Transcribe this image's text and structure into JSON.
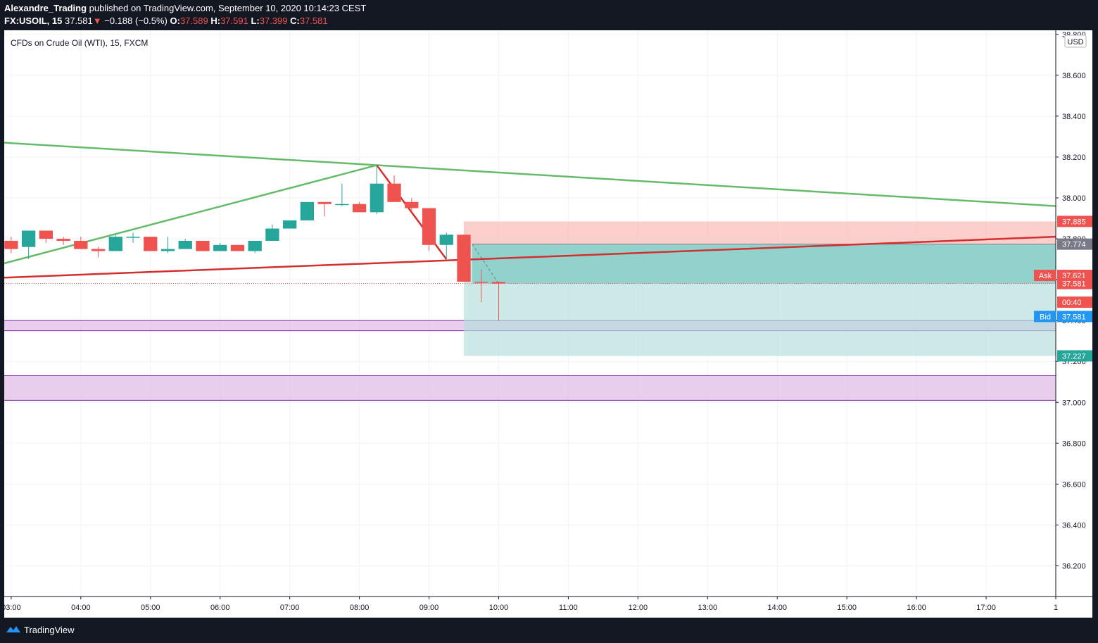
{
  "header": {
    "author": "Alexandre_Trading",
    "published_text": "published on TradingView.com, September 10, 2020 10:14:23 CEST",
    "symbol": "FX:USOIL, 15",
    "last": "37.581",
    "change": "−0.188 (−0.5%)",
    "o_label": "O:",
    "o_value": "37.589",
    "h_label": "H:",
    "h_value": "37.591",
    "l_label": "L:",
    "l_value": "37.399",
    "c_label": "C:",
    "c_value": "37.581"
  },
  "footer": {
    "brand": "TradingView",
    "logo_icon": "tradingview-logo-icon"
  },
  "colors": {
    "up": "#26a69a",
    "down": "#ef5350",
    "green_line": "#66bb6a",
    "red_line": "#d32f2f",
    "target_zone": "#b2dfdb",
    "stop_zone": "#f8bbb6",
    "purple_zone": "#e1bee7",
    "purple_edge": "#7b1fa2"
  },
  "chart_data": {
    "type": "candlestick",
    "title": "CFDs on Crude Oil (WTI), 15, FXCM",
    "currency": "USD",
    "y_ticks": [
      38.8,
      38.6,
      38.4,
      38.2,
      38.0,
      37.8,
      37.6,
      37.4,
      37.2,
      37.0,
      36.8,
      36.6,
      36.4,
      36.2
    ],
    "y_tick_labels": [
      "38.800",
      "38.600",
      "38.400",
      "38.200",
      "38.000",
      "37.800",
      "37.600",
      "37.400",
      "37.200",
      "37.000",
      "36.800",
      "36.600",
      "36.400",
      "36.200"
    ],
    "ylim": [
      36.05,
      38.82
    ],
    "x_tick_labels": [
      "03:00",
      "04:00",
      "05:00",
      "06:00",
      "07:00",
      "08:00",
      "09:00",
      "10:00",
      "11:00",
      "12:00",
      "13:00",
      "14:00",
      "15:00",
      "16:00",
      "17:00",
      "1"
    ],
    "x_tick_hours": [
      3,
      4,
      5,
      6,
      7,
      8,
      9,
      10,
      11,
      12,
      13,
      14,
      15,
      16,
      17,
      18
    ],
    "xlim": [
      2.9,
      18.0
    ],
    "candles": [
      {
        "t": 2.75,
        "o": 37.76,
        "h": 37.8,
        "l": 37.72,
        "c": 37.79
      },
      {
        "t": 3.0,
        "o": 37.79,
        "h": 37.81,
        "l": 37.73,
        "c": 37.75
      },
      {
        "t": 3.25,
        "o": 37.76,
        "h": 37.84,
        "l": 37.7,
        "c": 37.84
      },
      {
        "t": 3.5,
        "o": 37.84,
        "h": 37.84,
        "l": 37.78,
        "c": 37.8
      },
      {
        "t": 3.75,
        "o": 37.8,
        "h": 37.81,
        "l": 37.77,
        "c": 37.79
      },
      {
        "t": 4.0,
        "o": 37.79,
        "h": 37.81,
        "l": 37.75,
        "c": 37.75
      },
      {
        "t": 4.25,
        "o": 37.75,
        "h": 37.76,
        "l": 37.71,
        "c": 37.74
      },
      {
        "t": 4.5,
        "o": 37.74,
        "h": 37.82,
        "l": 37.74,
        "c": 37.81
      },
      {
        "t": 4.75,
        "o": 37.81,
        "h": 37.83,
        "l": 37.78,
        "c": 37.81
      },
      {
        "t": 5.0,
        "o": 37.81,
        "h": 37.81,
        "l": 37.74,
        "c": 37.74
      },
      {
        "t": 5.25,
        "o": 37.74,
        "h": 37.81,
        "l": 37.73,
        "c": 37.75
      },
      {
        "t": 5.5,
        "o": 37.75,
        "h": 37.8,
        "l": 37.75,
        "c": 37.79
      },
      {
        "t": 5.75,
        "o": 37.79,
        "h": 37.79,
        "l": 37.74,
        "c": 37.74
      },
      {
        "t": 6.0,
        "o": 37.74,
        "h": 37.78,
        "l": 37.74,
        "c": 37.77
      },
      {
        "t": 6.25,
        "o": 37.77,
        "h": 37.77,
        "l": 37.74,
        "c": 37.74
      },
      {
        "t": 6.5,
        "o": 37.74,
        "h": 37.79,
        "l": 37.73,
        "c": 37.79
      },
      {
        "t": 6.75,
        "o": 37.79,
        "h": 37.87,
        "l": 37.79,
        "c": 37.85
      },
      {
        "t": 7.0,
        "o": 37.85,
        "h": 37.89,
        "l": 37.85,
        "c": 37.89
      },
      {
        "t": 7.25,
        "o": 37.89,
        "h": 37.98,
        "l": 37.89,
        "c": 37.98
      },
      {
        "t": 7.5,
        "o": 37.98,
        "h": 37.98,
        "l": 37.91,
        "c": 37.97
      },
      {
        "t": 7.75,
        "o": 37.97,
        "h": 38.07,
        "l": 37.96,
        "c": 37.97
      },
      {
        "t": 8.0,
        "o": 37.97,
        "h": 37.98,
        "l": 37.93,
        "c": 37.93
      },
      {
        "t": 8.25,
        "o": 37.93,
        "h": 38.16,
        "l": 37.92,
        "c": 38.07
      },
      {
        "t": 8.5,
        "o": 38.07,
        "h": 38.11,
        "l": 37.98,
        "c": 37.98
      },
      {
        "t": 8.75,
        "o": 37.98,
        "h": 38.0,
        "l": 37.93,
        "c": 37.95
      },
      {
        "t": 9.0,
        "o": 37.95,
        "h": 37.95,
        "l": 37.74,
        "c": 37.77
      },
      {
        "t": 9.25,
        "o": 37.77,
        "h": 37.83,
        "l": 37.7,
        "c": 37.82
      },
      {
        "t": 9.5,
        "o": 37.82,
        "h": 37.82,
        "l": 37.59,
        "c": 37.59
      },
      {
        "t": 9.75,
        "o": 37.59,
        "h": 37.65,
        "l": 37.49,
        "c": 37.585
      },
      {
        "t": 10.0,
        "o": 37.589,
        "h": 37.591,
        "l": 37.399,
        "c": 37.581
      }
    ],
    "trendlines": [
      {
        "color": "green_line",
        "points": [
          [
            2.9,
            38.27
          ],
          [
            18.0,
            37.96
          ]
        ]
      },
      {
        "color": "green_line",
        "points": [
          [
            2.9,
            37.68
          ],
          [
            8.25,
            38.16
          ]
        ]
      },
      {
        "color": "red_line",
        "points": [
          [
            2.9,
            37.61
          ],
          [
            18.0,
            37.81
          ]
        ]
      },
      {
        "color": "red_line",
        "points": [
          [
            8.25,
            38.16
          ],
          [
            9.25,
            37.7
          ]
        ]
      }
    ],
    "position": {
      "entry": 37.774,
      "stop": 37.885,
      "target": 37.227,
      "start_t": 9.5,
      "end_t": 18.0,
      "current": 37.581
    },
    "zones": [
      {
        "from": 37.35,
        "to": 37.4
      },
      {
        "from": 37.01,
        "to": 37.13
      }
    ],
    "price_tags": [
      {
        "label": "",
        "value": "37.885",
        "price": 37.885,
        "color": "#ef5350"
      },
      {
        "label": "",
        "value": "37.774",
        "price": 37.774,
        "color": "#787b86"
      },
      {
        "label": "Ask",
        "value": "37.621",
        "price": 37.621,
        "color": "#ef5350"
      },
      {
        "label": "",
        "value": "37.581",
        "price": 37.581,
        "color": "#ef5350"
      },
      {
        "label": "",
        "value": "00:40",
        "price": 37.49,
        "color": "#ef5350"
      },
      {
        "label": "Bid",
        "value": "37.581",
        "price": 37.42,
        "color": "#2196f3"
      },
      {
        "label": "",
        "value": "37.227",
        "price": 37.227,
        "color": "#26a69a"
      }
    ]
  }
}
